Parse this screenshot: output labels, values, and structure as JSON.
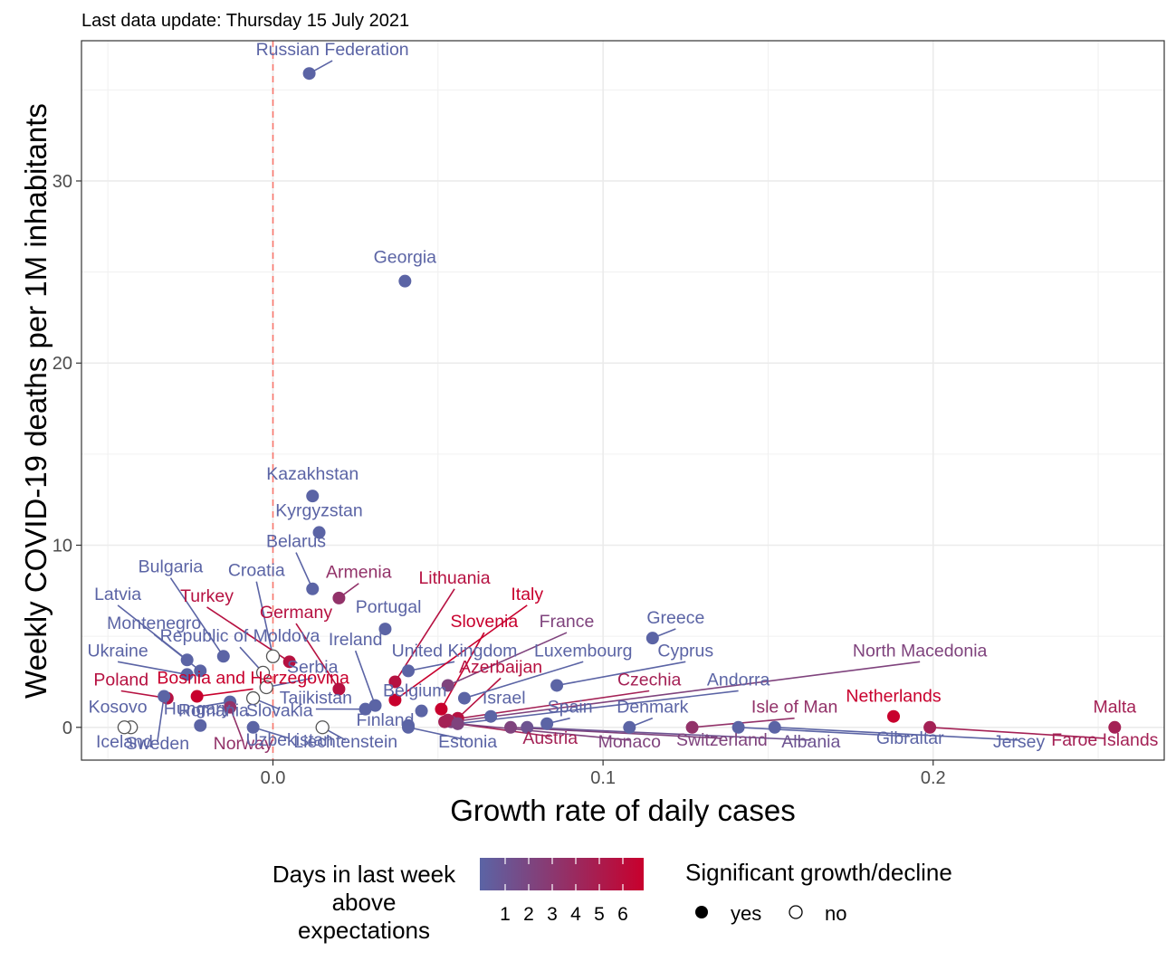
{
  "subtitle": "Last data update: Thursday 15 July 2021",
  "chart_data": {
    "type": "scatter",
    "xlabel": "Growth rate of daily cases",
    "ylabel": "Weekly COVID-19 deaths per 1M inhabitants",
    "xlim": [
      -0.058,
      0.27
    ],
    "ylim": [
      -1.8,
      37.7
    ],
    "x_ticks": [
      {
        "value": 0.0,
        "label": "0.0"
      },
      {
        "value": 0.1,
        "label": "0.1"
      },
      {
        "value": 0.2,
        "label": "0.2"
      }
    ],
    "y_ticks": [
      {
        "value": 0,
        "label": "0"
      },
      {
        "value": 10,
        "label": "10"
      },
      {
        "value": 20,
        "label": "20"
      },
      {
        "value": 30,
        "label": "30"
      }
    ],
    "grid": true,
    "reference_line": {
      "x": 0,
      "color": "#f8766d",
      "style": "dashed"
    },
    "color_scale": {
      "low": "#5b64a5",
      "high": "#c8002d"
    },
    "legend": {
      "position": "bottom",
      "color_title": "Days in last week above expectations",
      "color_title_lines": [
        "Days in last week",
        "above",
        "expectations"
      ],
      "color_ticks": [
        "1",
        "2",
        "3",
        "4",
        "5",
        "6"
      ],
      "shape_title": "Significant growth/decline",
      "shape_yes": "yes",
      "shape_no": "no"
    },
    "points": [
      {
        "name": "Russian Federation",
        "x": 0.011,
        "y": 35.9,
        "days": 0,
        "sig": true,
        "lx": 0.018,
        "ly": 36.9
      },
      {
        "name": "Georgia",
        "x": 0.04,
        "y": 24.5,
        "days": 0,
        "sig": true,
        "lx": 0.04,
        "ly": 25.5
      },
      {
        "name": "Kazakhstan",
        "x": 0.012,
        "y": 12.7,
        "days": 0,
        "sig": true,
        "lx": 0.012,
        "ly": 13.6
      },
      {
        "name": "Kyrgyzstan",
        "x": 0.014,
        "y": 10.7,
        "days": 0,
        "sig": true,
        "lx": 0.014,
        "ly": 11.6
      },
      {
        "name": "Belarus",
        "x": 0.012,
        "y": 7.6,
        "days": 0,
        "sig": true,
        "lx": 0.007,
        "ly": 9.9
      },
      {
        "name": "Armenia",
        "x": 0.02,
        "y": 7.1,
        "days": 3,
        "sig": true,
        "lx": 0.026,
        "ly": 8.2
      },
      {
        "name": "Portugal",
        "x": 0.034,
        "y": 5.4,
        "days": 0,
        "sig": true,
        "lx": 0.035,
        "ly": 6.3
      },
      {
        "name": "Greece",
        "x": 0.115,
        "y": 4.9,
        "days": 0,
        "sig": true,
        "lx": 0.122,
        "ly": 5.7
      },
      {
        "name": "Bulgaria",
        "x": -0.015,
        "y": 3.9,
        "days": 0,
        "sig": true,
        "lx": -0.031,
        "ly": 8.5
      },
      {
        "name": "Croatia",
        "x": 0.0,
        "y": 3.9,
        "days": 0,
        "sig": false,
        "lx": -0.005,
        "ly": 8.3
      },
      {
        "name": "Latvia",
        "x": -0.026,
        "y": 3.7,
        "days": 0,
        "sig": true,
        "lx": -0.047,
        "ly": 7.0
      },
      {
        "name": "Montenegro",
        "x": -0.022,
        "y": 3.1,
        "days": 0,
        "sig": true,
        "lx": -0.036,
        "ly": 5.4
      },
      {
        "name": "Ukraine",
        "x": -0.026,
        "y": 2.9,
        "days": 0,
        "sig": true,
        "lx": -0.047,
        "ly": 3.9
      },
      {
        "name": "Republic of Moldova",
        "x": -0.003,
        "y": 3.0,
        "days": 0,
        "sig": false,
        "lx": -0.01,
        "ly": 4.7
      },
      {
        "name": "Ireland",
        "x": 0.031,
        "y": 1.2,
        "days": 0,
        "sig": true,
        "lx": 0.025,
        "ly": 4.5
      },
      {
        "name": "Turkey",
        "x": 0.005,
        "y": 3.6,
        "days": 5,
        "sig": true,
        "lx": -0.02,
        "ly": 6.9
      },
      {
        "name": "Germany",
        "x": 0.02,
        "y": 2.1,
        "days": 5,
        "sig": true,
        "lx": 0.007,
        "ly": 6.0
      },
      {
        "name": "Serbia",
        "x": -0.002,
        "y": 2.2,
        "days": 0,
        "sig": false,
        "lx": 0.012,
        "ly": 3.0
      },
      {
        "name": "Lithuania",
        "x": 0.037,
        "y": 2.5,
        "days": 5,
        "sig": true,
        "lx": 0.055,
        "ly": 7.9
      },
      {
        "name": "United Kingdom",
        "x": 0.041,
        "y": 3.1,
        "days": 0,
        "sig": true,
        "lx": 0.055,
        "ly": 3.9
      },
      {
        "name": "Italy",
        "x": 0.037,
        "y": 1.5,
        "days": 6,
        "sig": true,
        "lx": 0.077,
        "ly": 7.0
      },
      {
        "name": "Slovenia",
        "x": 0.051,
        "y": 1.0,
        "days": 6,
        "sig": true,
        "lx": 0.064,
        "ly": 5.5
      },
      {
        "name": "France",
        "x": 0.053,
        "y": 2.3,
        "days": 2,
        "sig": true,
        "lx": 0.089,
        "ly": 5.5
      },
      {
        "name": "Azerbaijan",
        "x": 0.056,
        "y": 0.5,
        "days": 5,
        "sig": true,
        "lx": 0.069,
        "ly": 3.0
      },
      {
        "name": "Luxembourg",
        "x": 0.058,
        "y": 1.6,
        "days": 0,
        "sig": true,
        "lx": 0.094,
        "ly": 3.9
      },
      {
        "name": "Cyprus",
        "x": 0.086,
        "y": 2.3,
        "days": 0,
        "sig": true,
        "lx": 0.125,
        "ly": 3.9
      },
      {
        "name": "North Macedonia",
        "x": 0.054,
        "y": 0.3,
        "days": 2,
        "sig": true,
        "lx": 0.196,
        "ly": 3.9
      },
      {
        "name": "Czechia",
        "x": 0.053,
        "y": 0.4,
        "days": 4,
        "sig": true,
        "lx": 0.114,
        "ly": 2.3
      },
      {
        "name": "Andorra",
        "x": 0.056,
        "y": 0.2,
        "days": 0,
        "sig": true,
        "lx": 0.141,
        "ly": 2.3
      },
      {
        "name": "Israel",
        "x": 0.066,
        "y": 0.6,
        "days": 0,
        "sig": true,
        "lx": 0.07,
        "ly": 1.3
      },
      {
        "name": "Spain",
        "x": 0.083,
        "y": 0.2,
        "days": 0,
        "sig": true,
        "lx": 0.09,
        "ly": 0.8
      },
      {
        "name": "Belgium",
        "x": 0.045,
        "y": 0.9,
        "days": 0,
        "sig": true,
        "lx": 0.043,
        "ly": 1.7
      },
      {
        "name": "Denmark",
        "x": 0.108,
        "y": 0.0,
        "days": 0,
        "sig": true,
        "lx": 0.115,
        "ly": 0.8
      },
      {
        "name": "Isle of Man",
        "x": 0.127,
        "y": 0.0,
        "days": 3,
        "sig": true,
        "lx": 0.158,
        "ly": 0.8
      },
      {
        "name": "Netherlands",
        "x": 0.188,
        "y": 0.6,
        "days": 6,
        "sig": true,
        "lx": 0.188,
        "ly": 1.4
      },
      {
        "name": "Malta",
        "x": 0.255,
        "y": 0.0,
        "days": 4,
        "sig": true,
        "lx": 0.255,
        "ly": 0.8
      },
      {
        "name": "Poland",
        "x": -0.032,
        "y": 1.6,
        "days": 5,
        "sig": true,
        "lx": -0.046,
        "ly": 2.3
      },
      {
        "name": "Bosnia and Herzegovina",
        "x": -0.023,
        "y": 1.7,
        "days": 6,
        "sig": true,
        "lx": -0.006,
        "ly": 2.4
      },
      {
        "name": "Kosovo",
        "x": -0.043,
        "y": 0.0,
        "days": 0,
        "sig": false,
        "lx": -0.047,
        "ly": 0.8
      },
      {
        "name": "Hungary",
        "x": -0.013,
        "y": 1.4,
        "days": 0,
        "sig": true,
        "lx": -0.023,
        "ly": 0.7
      },
      {
        "name": "Romania",
        "x": -0.022,
        "y": 0.1,
        "days": 0,
        "sig": true,
        "lx": -0.018,
        "ly": 0.6
      },
      {
        "name": "Slovakia",
        "x": -0.006,
        "y": 1.6,
        "days": 0,
        "sig": false,
        "lx": 0.002,
        "ly": 0.6
      },
      {
        "name": "Tajikistan",
        "x": 0.028,
        "y": 1.0,
        "days": 0,
        "sig": true,
        "lx": 0.013,
        "ly": 1.3
      },
      {
        "name": "Finland",
        "x": 0.041,
        "y": 0.1,
        "days": 0,
        "sig": true,
        "lx": 0.034,
        "ly": 0.1
      },
      {
        "name": "Iceland",
        "x": -0.045,
        "y": 0.0,
        "days": 0,
        "sig": false,
        "lx": -0.045,
        "ly": -1.1
      },
      {
        "name": "Sweden",
        "x": -0.033,
        "y": 1.7,
        "days": 0,
        "sig": true,
        "lx": -0.035,
        "ly": -1.2
      },
      {
        "name": "Norway",
        "x": -0.013,
        "y": 1.1,
        "days": 3,
        "sig": true,
        "lx": -0.009,
        "ly": -1.2
      },
      {
        "name": "Uzbekistan",
        "x": -0.006,
        "y": 0.0,
        "days": 0,
        "sig": true,
        "lx": 0.005,
        "ly": -1.0
      },
      {
        "name": "Liechtenstein",
        "x": 0.015,
        "y": 0.0,
        "days": 0,
        "sig": false,
        "lx": 0.022,
        "ly": -1.1
      },
      {
        "name": "Estonia",
        "x": 0.041,
        "y": 0.0,
        "days": 0,
        "sig": true,
        "lx": 0.059,
        "ly": -1.1
      },
      {
        "name": "Austria",
        "x": 0.052,
        "y": 0.3,
        "days": 4,
        "sig": true,
        "lx": 0.084,
        "ly": -0.9
      },
      {
        "name": "Monaco",
        "x": 0.056,
        "y": 0.2,
        "days": 2,
        "sig": true,
        "lx": 0.108,
        "ly": -1.1
      },
      {
        "name": "Switzerland",
        "x": 0.072,
        "y": 0.0,
        "days": 2,
        "sig": true,
        "lx": 0.136,
        "ly": -1.0
      },
      {
        "name": "Albania",
        "x": 0.077,
        "y": 0.0,
        "days": 1,
        "sig": true,
        "lx": 0.163,
        "ly": -1.1
      },
      {
        "name": "Gibraltar",
        "x": 0.141,
        "y": 0.0,
        "days": 0,
        "sig": true,
        "lx": 0.193,
        "ly": -0.9
      },
      {
        "name": "Jersey",
        "x": 0.152,
        "y": 0.0,
        "days": 0,
        "sig": true,
        "lx": 0.226,
        "ly": -1.1
      },
      {
        "name": "Faroe Islands",
        "x": 0.199,
        "y": 0.0,
        "days": 4,
        "sig": true,
        "lx": 0.252,
        "ly": -1.0
      }
    ]
  }
}
